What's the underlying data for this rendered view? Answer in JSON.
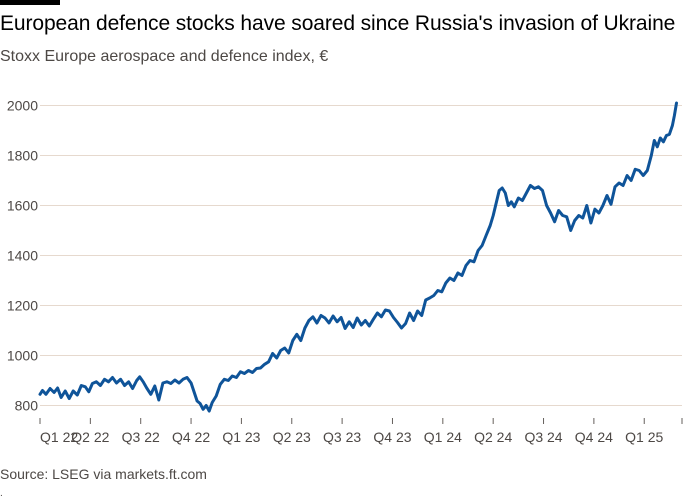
{
  "header": {
    "title": "European defence stocks have soared since Russia's invasion of Ukraine",
    "subtitle": "Stoxx Europe aerospace and defence index, €"
  },
  "footer": {
    "source": "Source: LSEG via markets.ft.com",
    "footnote": "."
  },
  "colors": {
    "line": "#0f5499",
    "grid": "#e6d9ce",
    "text": "#4d4845"
  },
  "chart_data": {
    "type": "line",
    "title": "European defence stocks have soared since Russia's invasion of Ukraine",
    "subtitle": "Stoxx Europe aerospace and defence index, €",
    "xlabel": "",
    "ylabel": "",
    "ylim": [
      750,
      2050
    ],
    "yticks": [
      800,
      1000,
      1200,
      1400,
      1600,
      1800,
      2000
    ],
    "grid": true,
    "x_ticks": [
      {
        "label": "Q1 22",
        "x": 0
      },
      {
        "label": "Q2 22",
        "x": 1
      },
      {
        "label": "Q3 22",
        "x": 2
      },
      {
        "label": "Q4 22",
        "x": 3
      },
      {
        "label": "Q1 23",
        "x": 4
      },
      {
        "label": "Q2 23",
        "x": 5
      },
      {
        "label": "Q3 23",
        "x": 6
      },
      {
        "label": "Q4 23",
        "x": 7
      },
      {
        "label": "Q1 24",
        "x": 8
      },
      {
        "label": "Q2 24",
        "x": 9
      },
      {
        "label": "Q3 24",
        "x": 10
      },
      {
        "label": "Q4 24",
        "x": 11
      },
      {
        "label": "Q1 25",
        "x": 12
      }
    ],
    "xlim": [
      0,
      12.75
    ],
    "series": [
      {
        "name": "",
        "color": "#0f5499",
        "points": [
          [
            0.0,
            845
          ],
          [
            0.05,
            860
          ],
          [
            0.12,
            845
          ],
          [
            0.2,
            868
          ],
          [
            0.28,
            852
          ],
          [
            0.35,
            870
          ],
          [
            0.42,
            832
          ],
          [
            0.5,
            858
          ],
          [
            0.58,
            828
          ],
          [
            0.66,
            858
          ],
          [
            0.74,
            842
          ],
          [
            0.82,
            880
          ],
          [
            0.9,
            875
          ],
          [
            0.97,
            855
          ],
          [
            1.04,
            888
          ],
          [
            1.12,
            895
          ],
          [
            1.2,
            880
          ],
          [
            1.28,
            905
          ],
          [
            1.36,
            895
          ],
          [
            1.44,
            912
          ],
          [
            1.52,
            890
          ],
          [
            1.6,
            905
          ],
          [
            1.68,
            880
          ],
          [
            1.76,
            895
          ],
          [
            1.84,
            868
          ],
          [
            1.92,
            900
          ],
          [
            1.98,
            915
          ],
          [
            2.05,
            895
          ],
          [
            2.12,
            870
          ],
          [
            2.2,
            845
          ],
          [
            2.28,
            878
          ],
          [
            2.36,
            822
          ],
          [
            2.44,
            890
          ],
          [
            2.52,
            895
          ],
          [
            2.6,
            888
          ],
          [
            2.68,
            902
          ],
          [
            2.76,
            890
          ],
          [
            2.84,
            905
          ],
          [
            2.92,
            912
          ],
          [
            3.0,
            890
          ],
          [
            3.05,
            860
          ],
          [
            3.12,
            818
          ],
          [
            3.18,
            808
          ],
          [
            3.24,
            785
          ],
          [
            3.3,
            800
          ],
          [
            3.36,
            778
          ],
          [
            3.42,
            812
          ],
          [
            3.5,
            838
          ],
          [
            3.58,
            885
          ],
          [
            3.66,
            905
          ],
          [
            3.74,
            900
          ],
          [
            3.82,
            918
          ],
          [
            3.9,
            912
          ],
          [
            3.98,
            935
          ],
          [
            4.06,
            928
          ],
          [
            4.14,
            940
          ],
          [
            4.22,
            932
          ],
          [
            4.3,
            948
          ],
          [
            4.38,
            950
          ],
          [
            4.46,
            965
          ],
          [
            4.54,
            975
          ],
          [
            4.62,
            1008
          ],
          [
            4.7,
            990
          ],
          [
            4.78,
            1020
          ],
          [
            4.86,
            1030
          ],
          [
            4.94,
            1010
          ],
          [
            5.02,
            1060
          ],
          [
            5.1,
            1085
          ],
          [
            5.18,
            1060
          ],
          [
            5.26,
            1110
          ],
          [
            5.34,
            1140
          ],
          [
            5.42,
            1155
          ],
          [
            5.5,
            1130
          ],
          [
            5.58,
            1160
          ],
          [
            5.66,
            1150
          ],
          [
            5.74,
            1130
          ],
          [
            5.82,
            1158
          ],
          [
            5.9,
            1135
          ],
          [
            5.98,
            1152
          ],
          [
            6.06,
            1108
          ],
          [
            6.14,
            1135
          ],
          [
            6.22,
            1112
          ],
          [
            6.3,
            1150
          ],
          [
            6.38,
            1122
          ],
          [
            6.46,
            1140
          ],
          [
            6.54,
            1118
          ],
          [
            6.62,
            1145
          ],
          [
            6.7,
            1170
          ],
          [
            6.78,
            1155
          ],
          [
            6.86,
            1182
          ],
          [
            6.94,
            1178
          ],
          [
            7.02,
            1152
          ],
          [
            7.1,
            1132
          ],
          [
            7.18,
            1110
          ],
          [
            7.26,
            1128
          ],
          [
            7.34,
            1170
          ],
          [
            7.42,
            1140
          ],
          [
            7.5,
            1178
          ],
          [
            7.58,
            1160
          ],
          [
            7.66,
            1222
          ],
          [
            7.74,
            1230
          ],
          [
            7.82,
            1240
          ],
          [
            7.9,
            1260
          ],
          [
            7.98,
            1255
          ],
          [
            8.06,
            1290
          ],
          [
            8.14,
            1310
          ],
          [
            8.22,
            1300
          ],
          [
            8.3,
            1330
          ],
          [
            8.38,
            1320
          ],
          [
            8.46,
            1360
          ],
          [
            8.54,
            1380
          ],
          [
            8.62,
            1375
          ],
          [
            8.7,
            1420
          ],
          [
            8.78,
            1440
          ],
          [
            8.86,
            1480
          ],
          [
            8.94,
            1520
          ],
          [
            9.0,
            1560
          ],
          [
            9.06,
            1610
          ],
          [
            9.12,
            1660
          ],
          [
            9.18,
            1670
          ],
          [
            9.24,
            1650
          ],
          [
            9.3,
            1600
          ],
          [
            9.36,
            1615
          ],
          [
            9.42,
            1595
          ],
          [
            9.5,
            1630
          ],
          [
            9.58,
            1620
          ],
          [
            9.66,
            1650
          ],
          [
            9.74,
            1680
          ],
          [
            9.82,
            1668
          ],
          [
            9.9,
            1675
          ],
          [
            9.98,
            1660
          ],
          [
            10.06,
            1600
          ],
          [
            10.14,
            1570
          ],
          [
            10.22,
            1535
          ],
          [
            10.3,
            1580
          ],
          [
            10.38,
            1560
          ],
          [
            10.46,
            1555
          ],
          [
            10.54,
            1500
          ],
          [
            10.62,
            1540
          ],
          [
            10.7,
            1560
          ],
          [
            10.78,
            1550
          ],
          [
            10.86,
            1600
          ],
          [
            10.94,
            1530
          ],
          [
            11.02,
            1585
          ],
          [
            11.1,
            1570
          ],
          [
            11.18,
            1600
          ],
          [
            11.26,
            1640
          ],
          [
            11.34,
            1605
          ],
          [
            11.42,
            1675
          ],
          [
            11.5,
            1690
          ],
          [
            11.58,
            1680
          ],
          [
            11.66,
            1720
          ],
          [
            11.74,
            1700
          ],
          [
            11.82,
            1745
          ],
          [
            11.9,
            1740
          ],
          [
            11.98,
            1720
          ],
          [
            12.06,
            1740
          ],
          [
            12.14,
            1800
          ],
          [
            12.2,
            1860
          ],
          [
            12.26,
            1835
          ],
          [
            12.32,
            1870
          ],
          [
            12.38,
            1855
          ],
          [
            12.44,
            1880
          ],
          [
            12.5,
            1885
          ],
          [
            12.56,
            1920
          ],
          [
            12.6,
            1960
          ],
          [
            12.64,
            2010
          ]
        ]
      }
    ]
  }
}
